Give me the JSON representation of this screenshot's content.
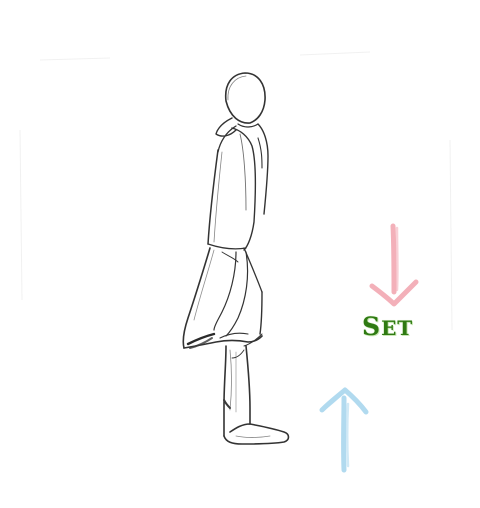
{
  "label": {
    "first": "S",
    "rest": "ET"
  },
  "colors": {
    "label": "#2f7a12",
    "arrow_down": "#f2a3ad",
    "arrow_up": "#a9d6ee",
    "pencil": "#333333"
  },
  "icons": {
    "figure": "standing-figure-sketch",
    "arrow_down": "arrow-down-icon",
    "arrow_up": "arrow-up-icon"
  }
}
